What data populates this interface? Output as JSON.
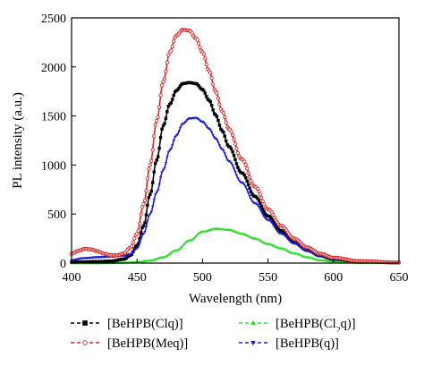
{
  "chart_data": {
    "type": "line",
    "title": "",
    "xlabel": "Wavelength (nm)",
    "ylabel": "PL intensity (a.u.)",
    "xlim": [
      400,
      650
    ],
    "ylim": [
      0,
      2500
    ],
    "x_ticks": [
      400,
      450,
      500,
      550,
      600,
      650
    ],
    "y_ticks": [
      0,
      500,
      1000,
      1500,
      2000,
      2500
    ],
    "grid": false,
    "legend_position": "bottom",
    "series": [
      {
        "name": "[BeHPB(Clq)]",
        "name_html": "[BeHPB(Clq)]",
        "color": "#000000",
        "marker": "square",
        "x": [
          400,
          410,
          420,
          430,
          440,
          445,
          450,
          455,
          460,
          465,
          470,
          475,
          480,
          485,
          490,
          495,
          500,
          505,
          510,
          515,
          520,
          530,
          540,
          550,
          560,
          570,
          580,
          590,
          600,
          620,
          650
        ],
        "y": [
          10,
          12,
          15,
          20,
          40,
          80,
          180,
          380,
          700,
          1050,
          1400,
          1620,
          1760,
          1830,
          1840,
          1830,
          1770,
          1660,
          1510,
          1350,
          1190,
          920,
          680,
          480,
          330,
          210,
          130,
          75,
          40,
          15,
          5
        ]
      },
      {
        "name": "[BeHPB(Meq)]",
        "name_html": "[BeHPB(Meq)]",
        "color": "#d62728",
        "marker": "circle",
        "x": [
          400,
          405,
          410,
          415,
          420,
          425,
          430,
          435,
          440,
          445,
          450,
          455,
          460,
          465,
          470,
          475,
          480,
          485,
          490,
          495,
          500,
          505,
          510,
          515,
          520,
          530,
          540,
          550,
          560,
          570,
          580,
          590,
          600,
          620,
          650
        ],
        "y": [
          95,
          125,
          145,
          140,
          120,
          95,
          80,
          80,
          100,
          160,
          300,
          600,
          1000,
          1450,
          1850,
          2150,
          2320,
          2380,
          2370,
          2290,
          2150,
          1960,
          1750,
          1550,
          1370,
          1060,
          780,
          550,
          380,
          250,
          160,
          95,
          55,
          20,
          5
        ]
      },
      {
        "name": "[BeHPB(Cl2q)]",
        "name_html": "[BeHPB(Cl<tspan baseline-shift=\"sub\" font-size=\"10\">2</tspan>q)]",
        "color": "#33dd33",
        "marker": "triangle-up",
        "x": [
          400,
          420,
          440,
          450,
          460,
          470,
          480,
          490,
          500,
          510,
          520,
          530,
          540,
          550,
          560,
          570,
          580,
          590,
          600,
          610,
          620,
          650
        ],
        "y": [
          0,
          0,
          5,
          10,
          25,
          60,
          130,
          230,
          320,
          350,
          340,
          300,
          250,
          195,
          150,
          100,
          60,
          30,
          15,
          7,
          3,
          0
        ]
      },
      {
        "name": "[BeHPB(q)]",
        "name_html": "[BeHPB(q)]",
        "color": "#1f1fd6",
        "marker": "triangle-down",
        "x": [
          400,
          410,
          420,
          430,
          440,
          445,
          450,
          455,
          460,
          465,
          470,
          475,
          480,
          485,
          490,
          495,
          500,
          505,
          510,
          515,
          520,
          530,
          540,
          550,
          560,
          570,
          580,
          590,
          600,
          620,
          650
        ],
        "y": [
          30,
          50,
          60,
          65,
          75,
          90,
          150,
          300,
          500,
          720,
          950,
          1150,
          1300,
          1420,
          1475,
          1480,
          1440,
          1370,
          1270,
          1160,
          1040,
          820,
          610,
          440,
          300,
          200,
          125,
          75,
          40,
          15,
          5
        ]
      }
    ]
  }
}
